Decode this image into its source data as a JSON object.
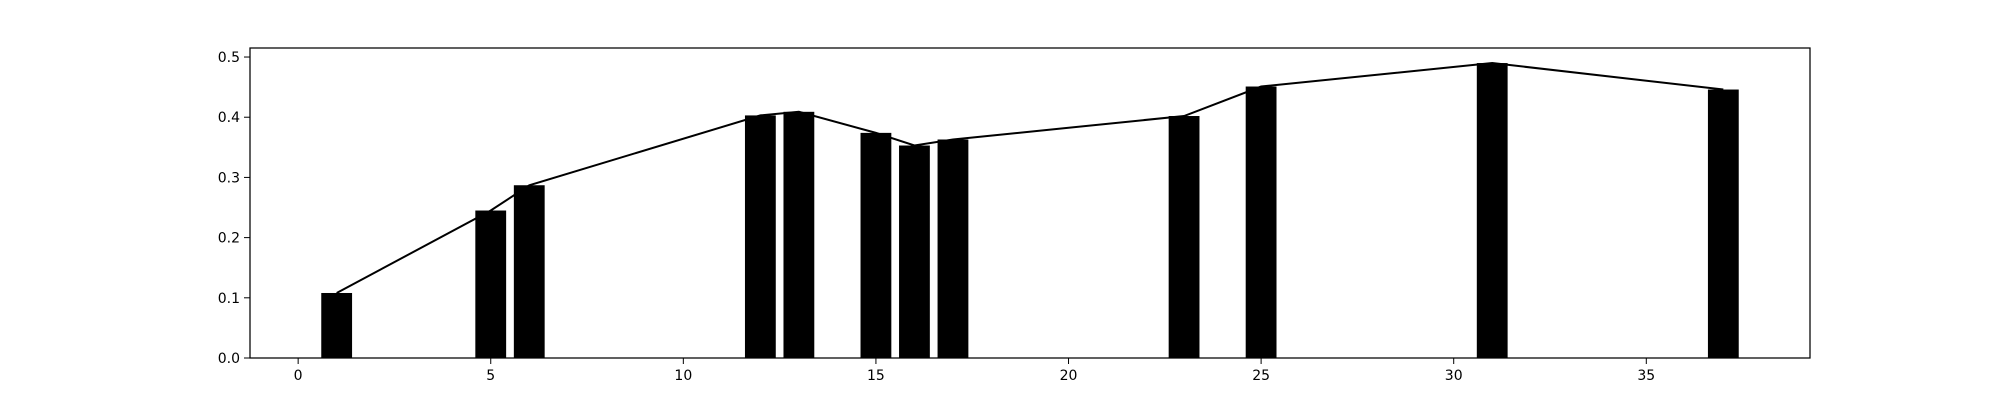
{
  "chart_data": {
    "type": "bar",
    "title": "",
    "xlabel": "",
    "ylabel": "",
    "xlim": [
      -1.25,
      39.25
    ],
    "ylim": [
      0,
      0.515
    ],
    "grid": false,
    "legend": "none",
    "bar_width": 0.8,
    "x": [
      1,
      5,
      6,
      12,
      13,
      15,
      16,
      17,
      23,
      25,
      31,
      37
    ],
    "values": [
      0.108,
      0.245,
      0.287,
      0.403,
      0.409,
      0.374,
      0.353,
      0.363,
      0.402,
      0.451,
      0.49,
      0.446
    ],
    "line": {
      "x": [
        1,
        5,
        6,
        12,
        13,
        15,
        16,
        17,
        23,
        25,
        31,
        37
      ],
      "y": [
        0.108,
        0.245,
        0.287,
        0.403,
        0.409,
        0.374,
        0.353,
        0.363,
        0.402,
        0.451,
        0.49,
        0.446
      ]
    },
    "xticks": [
      0,
      5,
      10,
      15,
      20,
      25,
      30,
      35
    ],
    "xtick_labels": [
      "0",
      "5",
      "10",
      "15",
      "20",
      "25",
      "30",
      "35"
    ],
    "yticks": [
      0.0,
      0.1,
      0.2,
      0.3,
      0.4,
      0.5
    ],
    "ytick_labels": [
      "0.0",
      "0.1",
      "0.2",
      "0.3",
      "0.4",
      "0.5"
    ],
    "colors": {
      "bar": "#000000",
      "line": "#000000",
      "axes": "#000000",
      "background": "#ffffff"
    }
  }
}
